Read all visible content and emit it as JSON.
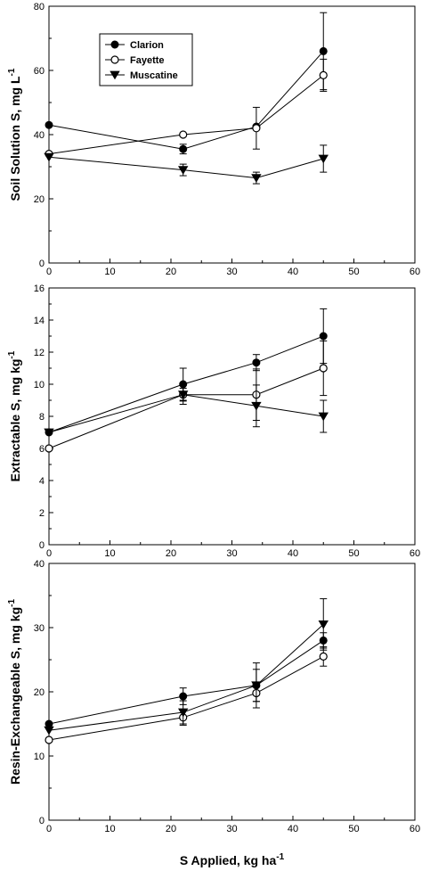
{
  "chart_data": [
    {
      "type": "line",
      "ylabel": "Soil Solution S, mg L",
      "ylabel_sup": "-1",
      "xlim": [
        0,
        60
      ],
      "ylim": [
        0,
        80
      ],
      "xticks": [
        "0",
        "10",
        "20",
        "30",
        "40",
        "50",
        "60"
      ],
      "yticks": [
        "0",
        "20",
        "40",
        "60",
        "80"
      ],
      "legend": {
        "placement": "top-left",
        "entries": [
          "Clarion",
          "Fayette",
          "Muscatine"
        ]
      },
      "x": [
        0,
        22,
        34,
        45
      ],
      "series": [
        {
          "name": "Clarion",
          "marker": "filled-circle",
          "values": [
            43,
            35.5,
            42.5,
            66
          ],
          "errors": [
            0,
            1.5,
            0,
            12
          ]
        },
        {
          "name": "Fayette",
          "marker": "open-circle",
          "values": [
            34,
            40,
            42,
            58.5
          ],
          "errors": [
            0,
            0,
            6.5,
            5
          ]
        },
        {
          "name": "Muscatine",
          "marker": "filled-triangle-down",
          "values": [
            33,
            29,
            26.5,
            32.5
          ],
          "errors": [
            0,
            1.8,
            1.8,
            4.2
          ]
        }
      ]
    },
    {
      "type": "line",
      "ylabel": "Extractable S, mg kg",
      "ylabel_sup": "-1",
      "xlim": [
        0,
        60
      ],
      "ylim": [
        0,
        16
      ],
      "xticks": [
        "0",
        "10",
        "20",
        "30",
        "40",
        "50",
        "60"
      ],
      "yticks": [
        "0",
        "2",
        "4",
        "6",
        "8",
        "10",
        "12",
        "14",
        "16"
      ],
      "x": [
        0,
        22,
        34,
        45
      ],
      "series": [
        {
          "name": "Clarion",
          "marker": "filled-circle",
          "values": [
            7,
            10,
            11.35,
            13
          ],
          "errors": [
            0,
            1,
            0.5,
            1.7
          ]
        },
        {
          "name": "Fayette",
          "marker": "open-circle",
          "values": [
            6,
            9.35,
            9.35,
            11
          ],
          "errors": [
            0,
            0.4,
            1.6,
            1.7
          ]
        },
        {
          "name": "Muscatine",
          "marker": "filled-triangle-down",
          "values": [
            7,
            9.35,
            8.65,
            8
          ],
          "errors": [
            0,
            0.6,
            1.3,
            1
          ]
        }
      ]
    },
    {
      "type": "line",
      "ylabel": "Resin-Exchangeable S, mg kg",
      "ylabel_sup": "-1",
      "xlabel": "S Applied, kg ha",
      "xlabel_sup": "-1",
      "xlim": [
        0,
        60
      ],
      "ylim": [
        0,
        40
      ],
      "xticks": [
        "0",
        "10",
        "20",
        "30",
        "40",
        "50",
        "60"
      ],
      "yticks": [
        "0",
        "10",
        "20",
        "30",
        "40"
      ],
      "x": [
        0,
        22,
        34,
        45
      ],
      "series": [
        {
          "name": "Clarion",
          "marker": "filled-circle",
          "values": [
            15,
            19.3,
            21,
            28
          ],
          "errors": [
            0,
            1.3,
            3.5,
            1.2
          ]
        },
        {
          "name": "Fayette",
          "marker": "open-circle",
          "values": [
            12.5,
            16,
            19.8,
            25.5
          ],
          "errors": [
            0,
            1.2,
            1.3,
            1.5
          ]
        },
        {
          "name": "Muscatine",
          "marker": "filled-triangle-down",
          "values": [
            14,
            16.8,
            21,
            30.5
          ],
          "errors": [
            0,
            1.8,
            2.5,
            4
          ]
        }
      ]
    }
  ]
}
